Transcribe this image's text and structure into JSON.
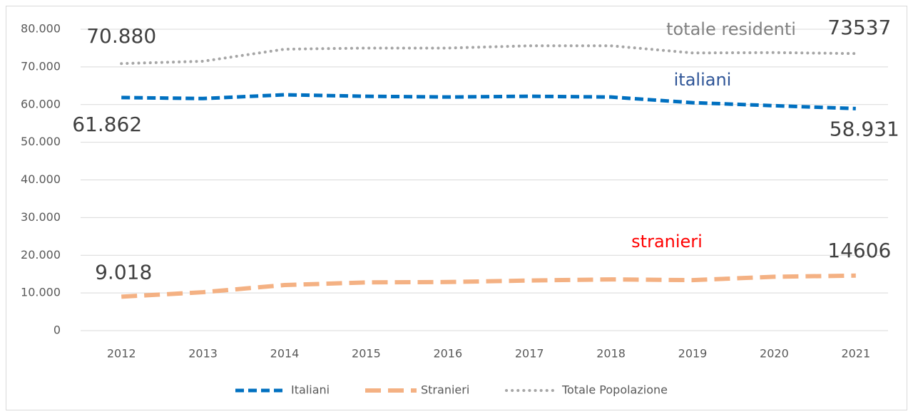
{
  "chart_data": {
    "type": "line",
    "categories": [
      "2012",
      "2013",
      "2014",
      "2015",
      "2016",
      "2017",
      "2018",
      "2019",
      "2020",
      "2021"
    ],
    "series": [
      {
        "name": "Italiani",
        "color": "#0070c0",
        "label": "italiani",
        "label_color": "#2f5597",
        "values": [
          61862,
          61600,
          62600,
          62200,
          62000,
          62200,
          62000,
          60500,
          59700,
          58931
        ],
        "value_labels": [
          "61.862",
          null,
          null,
          null,
          null,
          null,
          null,
          null,
          null,
          "58.931"
        ]
      },
      {
        "name": "Stranieri",
        "color": "#f4b183",
        "label": "stranieri",
        "label_color": "#ff0000",
        "values": [
          9018,
          10200,
          12100,
          12800,
          12900,
          13300,
          13600,
          13400,
          14300,
          14606
        ],
        "value_labels": [
          "9.018",
          null,
          null,
          null,
          null,
          null,
          null,
          null,
          null,
          "14606"
        ]
      },
      {
        "name": "Totale Popolazione",
        "color": "#a6a6a6",
        "label": "totale residenti",
        "label_color": "#808080",
        "values": [
          70880,
          71500,
          74700,
          75000,
          75000,
          75600,
          75600,
          73700,
          73800,
          73537
        ],
        "value_labels": [
          "70.880",
          null,
          null,
          null,
          null,
          null,
          null,
          null,
          null,
          "73537"
        ]
      }
    ],
    "ylim": [
      0,
      80000
    ],
    "yticks": [
      0,
      {
        "value": 10000,
        "label": "10.000"
      },
      {
        "value": 20000,
        "label": "20.000"
      },
      {
        "value": 30000,
        "label": "30.000"
      },
      {
        "value": 40000,
        "label": "40.000"
      },
      {
        "value": 50000,
        "label": "50.000"
      },
      {
        "value": 60000,
        "label": "60.000"
      },
      {
        "value": 70000,
        "label": "70.000"
      },
      {
        "value": 80000,
        "label": "80.000"
      }
    ],
    "grid": true,
    "legend": "bottom"
  }
}
